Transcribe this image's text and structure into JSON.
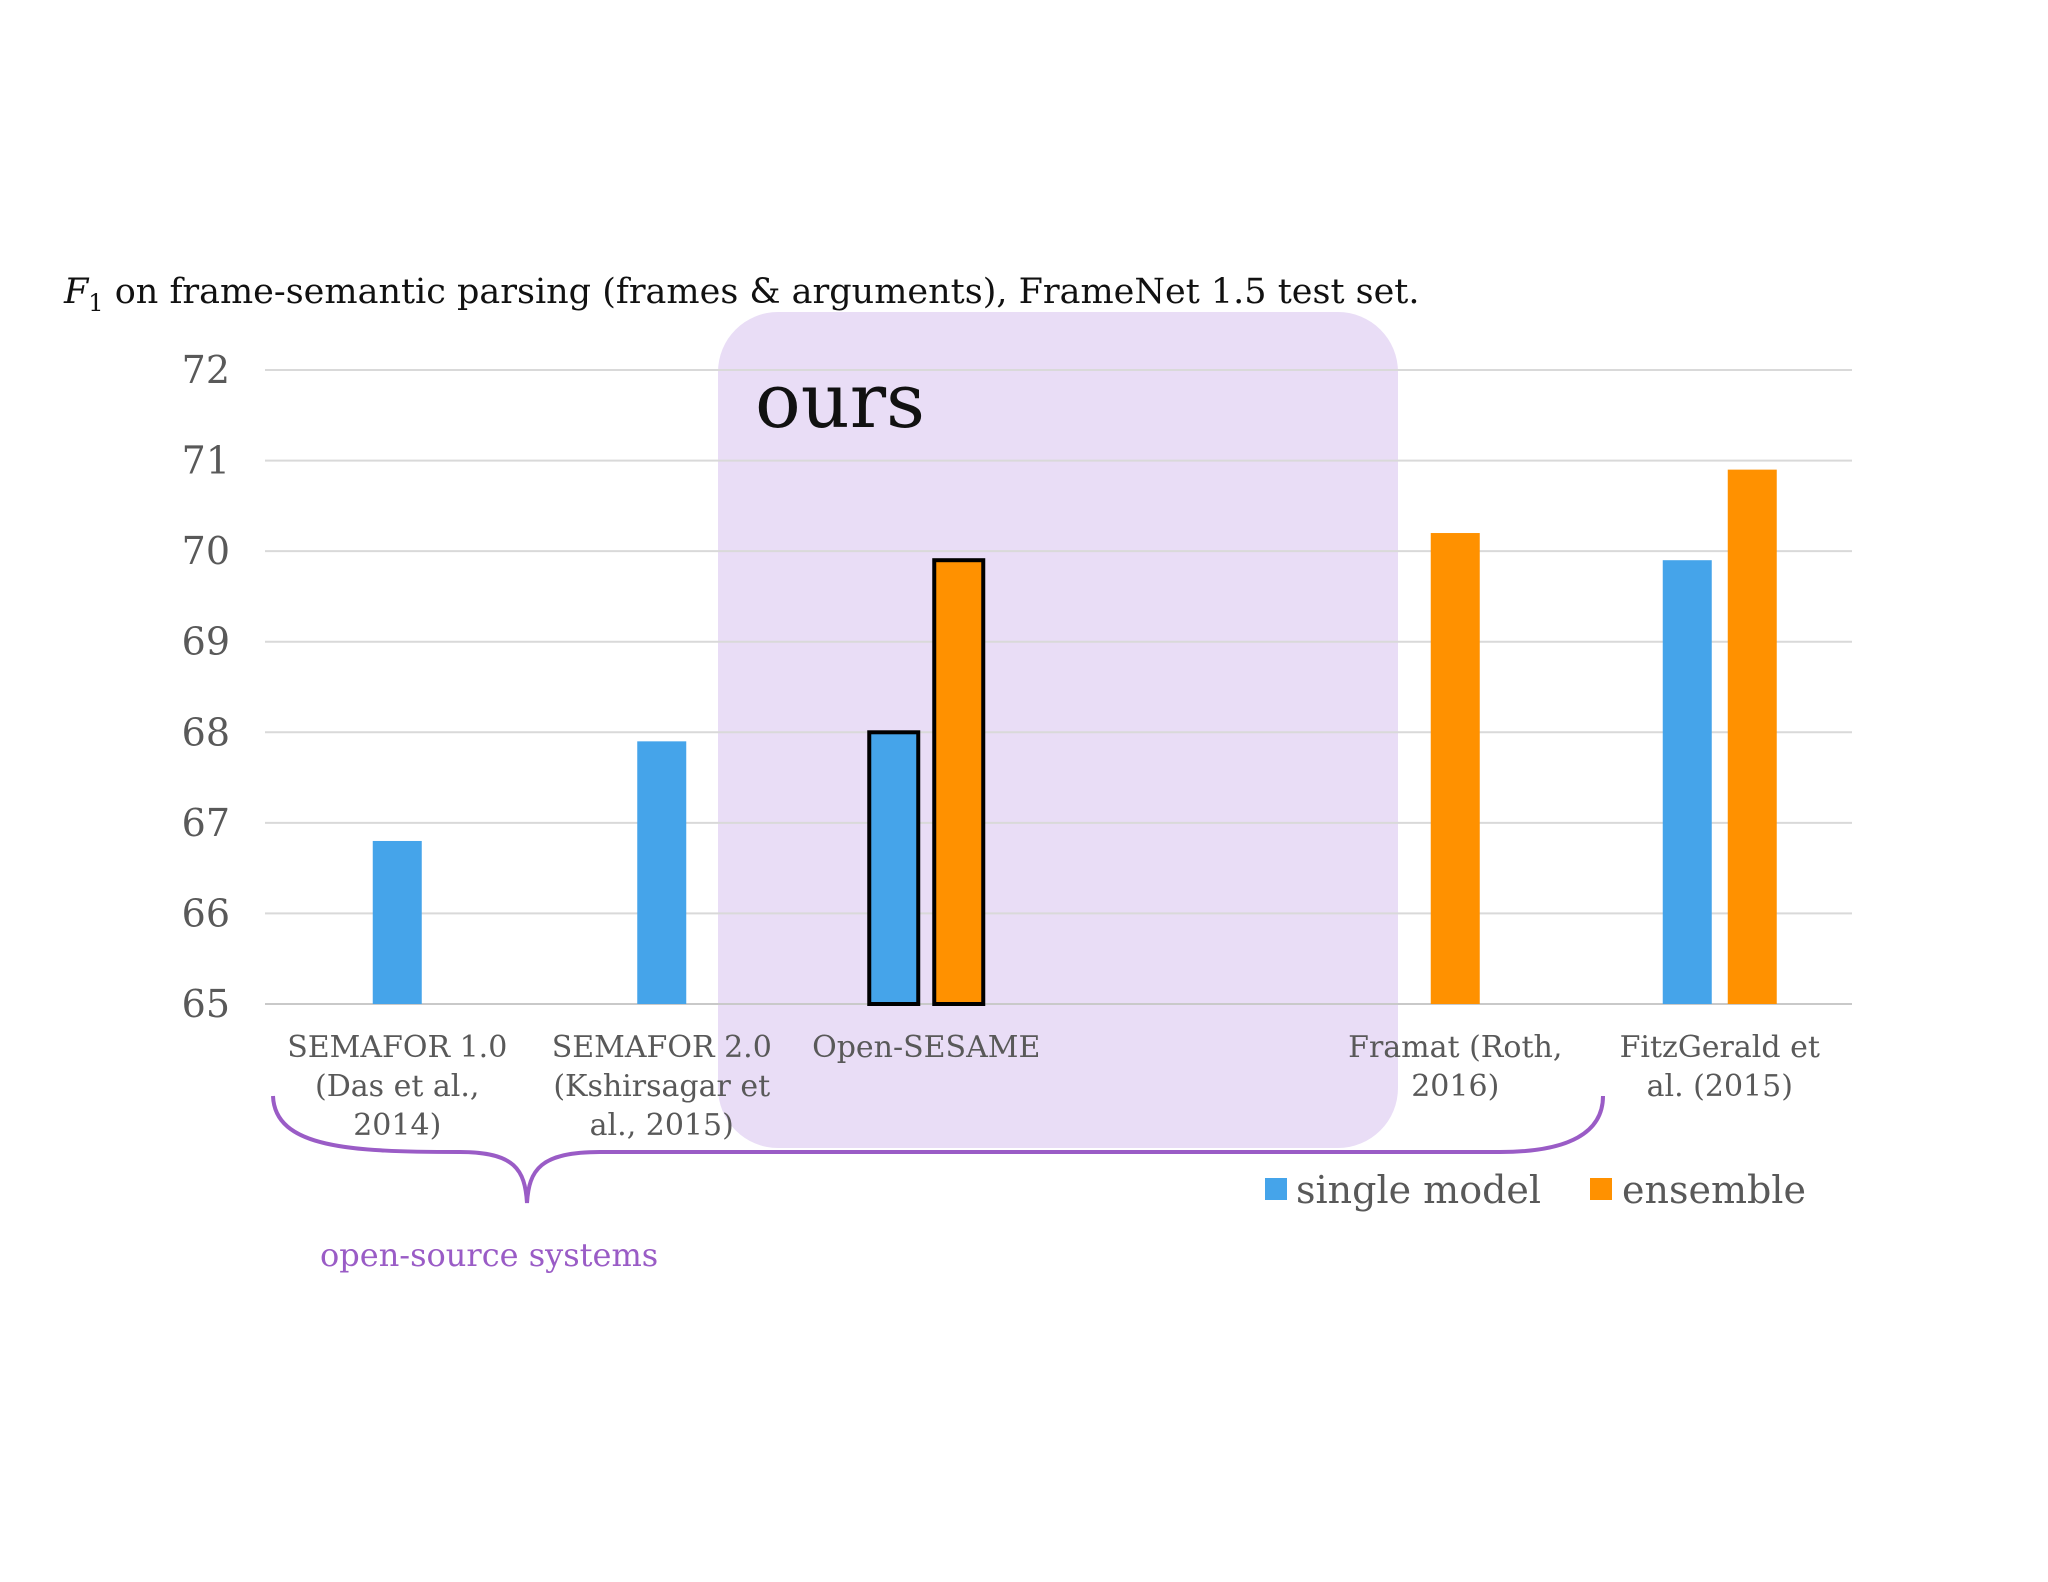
{
  "chart_data": {
    "type": "bar",
    "title": {
      "symbol": "F",
      "subscript": "1",
      "text": " on frame-semantic parsing (frames & arguments), FrameNet 1.5 test set."
    },
    "categories": [
      [
        "SEMAFOR 1.0",
        "(Das et al.,",
        "2014)"
      ],
      [
        "SEMAFOR 2.0",
        "(Kshirsagar et",
        "al., 2015)"
      ],
      [
        "Open-SESAME"
      ],
      [],
      [
        "Framat (Roth,",
        "2016)"
      ],
      [
        "FitzGerald et",
        "al. (2015)"
      ]
    ],
    "series": [
      {
        "name": "single model",
        "color": "#45a4ea",
        "values": [
          66.8,
          67.9,
          68.0,
          null,
          null,
          69.9
        ]
      },
      {
        "name": "ensemble",
        "color": "#ff9100",
        "values": [
          null,
          null,
          69.9,
          null,
          70.2,
          70.9
        ]
      }
    ],
    "ylim": [
      65,
      72
    ],
    "yticks": [
      65,
      66,
      67,
      68,
      69,
      70,
      71,
      72
    ],
    "grid": true,
    "legend_position": "bottom-right",
    "highlight": {
      "label": "ours",
      "category_index": 2,
      "color": "#e9ddf6"
    },
    "annotation": {
      "label": "open-source systems",
      "color": "#9a5cc6",
      "category_span": [
        0,
        4
      ]
    }
  }
}
